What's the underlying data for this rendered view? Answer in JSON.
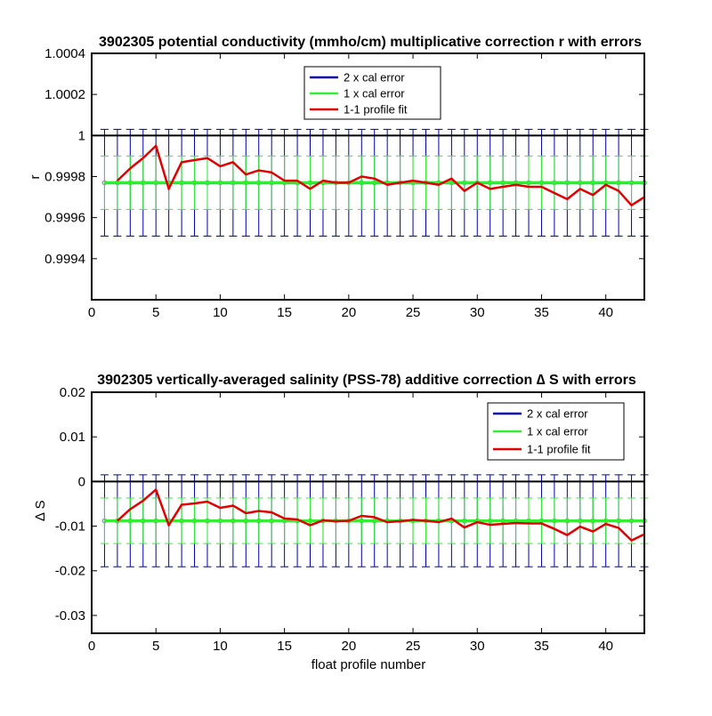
{
  "colors": {
    "two_cal": "#0000a8",
    "one_cal": "#33ee33",
    "fit": "#e00000",
    "zero": "#000000"
  },
  "chart_data": [
    {
      "type": "line",
      "title": "3902305 potential conductivity (mmho/cm) multiplicative correction r with errors",
      "xlabel": "",
      "ylabel": "r",
      "xlim": [
        0,
        43
      ],
      "ylim": [
        0.9992,
        1.0004
      ],
      "xticks": [
        0,
        5,
        10,
        15,
        20,
        25,
        30,
        35,
        40
      ],
      "xtick_labels": [
        "0",
        "5",
        "10",
        "15",
        "20",
        "25",
        "30",
        "35",
        "40"
      ],
      "yticks": [
        0.9994,
        0.9996,
        0.9998,
        1,
        1.0002,
        1.0004
      ],
      "ytick_labels": [
        "0.9994",
        "0.9996",
        "0.9998",
        "1",
        "1.0002",
        "1.0004"
      ],
      "grid": false,
      "legend_position": "top-center",
      "reference_line": 1,
      "x": [
        1,
        2,
        3,
        4,
        5,
        6,
        7,
        8,
        9,
        10,
        11,
        12,
        13,
        14,
        15,
        16,
        17,
        18,
        19,
        20,
        21,
        22,
        23,
        24,
        25,
        26,
        27,
        28,
        29,
        30,
        31,
        32,
        33,
        34,
        35,
        36,
        37,
        38,
        39,
        40,
        41,
        42,
        43
      ],
      "series": [
        {
          "name": "2 x cal error",
          "kind": "errorbar",
          "center": 0.99977,
          "half_width": 0.00026,
          "x": [
            1,
            2,
            3,
            4,
            5,
            6,
            7,
            8,
            9,
            10,
            11,
            12,
            13,
            14,
            15,
            16,
            17,
            18,
            19,
            20,
            21,
            22,
            23,
            24,
            25,
            26,
            27,
            28,
            29,
            30,
            31,
            32,
            33,
            34,
            35,
            36,
            37,
            38,
            39,
            40,
            41,
            42,
            43
          ]
        },
        {
          "name": "1 x cal error",
          "kind": "errorbar",
          "center": 0.99977,
          "half_width": 0.00013,
          "x": [
            1,
            2,
            3,
            4,
            5,
            6,
            7,
            8,
            9,
            10,
            11,
            12,
            13,
            14,
            15,
            16,
            17,
            18,
            19,
            20,
            21,
            22,
            23,
            24,
            25,
            26,
            27,
            28,
            29,
            30,
            31,
            32,
            33,
            34,
            35,
            36,
            37,
            38,
            39,
            40,
            41,
            42,
            43
          ]
        },
        {
          "name": "1-1 profile fit",
          "kind": "line",
          "x": [
            2,
            3,
            4,
            5,
            6,
            7,
            8,
            9,
            10,
            11,
            12,
            13,
            14,
            15,
            16,
            17,
            18,
            19,
            20,
            21,
            22,
            23,
            24,
            25,
            26,
            27,
            28,
            29,
            30,
            31,
            32,
            33,
            34,
            35,
            36,
            37,
            38,
            39,
            40,
            41,
            42,
            43
          ],
          "values": [
            0.99978,
            0.99984,
            0.99989,
            0.99995,
            0.99974,
            0.99987,
            0.99988,
            0.99989,
            0.99985,
            0.99987,
            0.99981,
            0.99983,
            0.99982,
            0.99978,
            0.99978,
            0.99974,
            0.99978,
            0.99977,
            0.99977,
            0.9998,
            0.99979,
            0.99976,
            0.99977,
            0.99978,
            0.99977,
            0.99976,
            0.99979,
            0.99973,
            0.99977,
            0.99974,
            0.99975,
            0.99976,
            0.99975,
            0.99975,
            0.99972,
            0.99969,
            0.99974,
            0.99971,
            0.99976,
            0.99973,
            0.99966,
            0.9997
          ]
        }
      ]
    },
    {
      "type": "line",
      "title": "3902305 vertically-averaged salinity (PSS-78) additive correction ∆ S with errors",
      "xlabel": "float profile number",
      "ylabel": "∆ S",
      "xlim": [
        0,
        43
      ],
      "ylim": [
        -0.034,
        0.02
      ],
      "xticks": [
        0,
        5,
        10,
        15,
        20,
        25,
        30,
        35,
        40
      ],
      "xtick_labels": [
        "0",
        "5",
        "10",
        "15",
        "20",
        "25",
        "30",
        "35",
        "40"
      ],
      "yticks": [
        -0.03,
        -0.02,
        -0.01,
        0,
        0.01,
        0.02
      ],
      "ytick_labels": [
        "-0.03",
        "-0.02",
        "-0.01",
        "0",
        "0.01",
        "0.02"
      ],
      "grid": false,
      "legend_position": "top-right",
      "reference_line": 0,
      "x": [
        1,
        2,
        3,
        4,
        5,
        6,
        7,
        8,
        9,
        10,
        11,
        12,
        13,
        14,
        15,
        16,
        17,
        18,
        19,
        20,
        21,
        22,
        23,
        24,
        25,
        26,
        27,
        28,
        29,
        30,
        31,
        32,
        33,
        34,
        35,
        36,
        37,
        38,
        39,
        40,
        41,
        42,
        43
      ],
      "series": [
        {
          "name": "2 x cal error",
          "kind": "errorbar",
          "center": -0.0088,
          "half_width": 0.0103,
          "x": [
            1,
            2,
            3,
            4,
            5,
            6,
            7,
            8,
            9,
            10,
            11,
            12,
            13,
            14,
            15,
            16,
            17,
            18,
            19,
            20,
            21,
            22,
            23,
            24,
            25,
            26,
            27,
            28,
            29,
            30,
            31,
            32,
            33,
            34,
            35,
            36,
            37,
            38,
            39,
            40,
            41,
            42,
            43
          ]
        },
        {
          "name": "1 x cal error",
          "kind": "errorbar",
          "center": -0.0088,
          "half_width": 0.0051,
          "x": [
            1,
            2,
            3,
            4,
            5,
            6,
            7,
            8,
            9,
            10,
            11,
            12,
            13,
            14,
            15,
            16,
            17,
            18,
            19,
            20,
            21,
            22,
            23,
            24,
            25,
            26,
            27,
            28,
            29,
            30,
            31,
            32,
            33,
            34,
            35,
            36,
            37,
            38,
            39,
            40,
            41,
            42,
            43
          ]
        },
        {
          "name": "1-1 profile fit",
          "kind": "line",
          "x": [
            2,
            3,
            4,
            5,
            6,
            7,
            8,
            9,
            10,
            11,
            12,
            13,
            14,
            15,
            16,
            17,
            18,
            19,
            20,
            21,
            22,
            23,
            24,
            25,
            26,
            27,
            28,
            29,
            30,
            31,
            32,
            33,
            34,
            35,
            36,
            37,
            38,
            39,
            40,
            41,
            42,
            43
          ],
          "values": [
            -0.0088,
            -0.0062,
            -0.0043,
            -0.0018,
            -0.0098,
            -0.0052,
            -0.0049,
            -0.0045,
            -0.0059,
            -0.0054,
            -0.0071,
            -0.0066,
            -0.0069,
            -0.0083,
            -0.0085,
            -0.0098,
            -0.0087,
            -0.0089,
            -0.0088,
            -0.0077,
            -0.008,
            -0.0091,
            -0.0089,
            -0.0086,
            -0.0088,
            -0.0091,
            -0.0083,
            -0.0103,
            -0.0091,
            -0.0097,
            -0.0095,
            -0.0093,
            -0.0094,
            -0.0094,
            -0.0106,
            -0.012,
            -0.0101,
            -0.0112,
            -0.0095,
            -0.0104,
            -0.0132,
            -0.0118
          ]
        }
      ]
    }
  ]
}
